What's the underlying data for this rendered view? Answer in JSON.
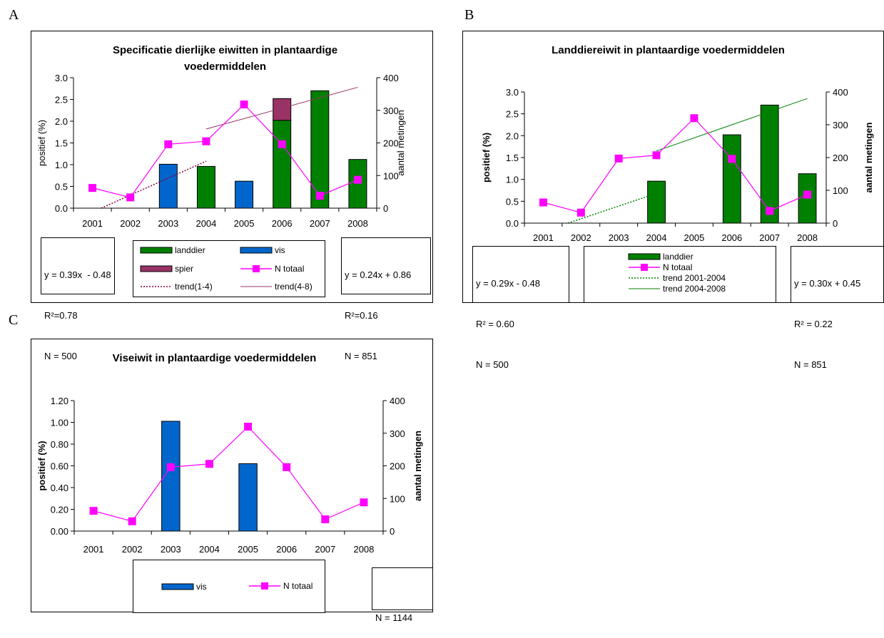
{
  "panels": {
    "A": {
      "letter": "A",
      "chart_data": {
        "type": "bar",
        "title": "Specificatie dierlijke eiwitten in plantaardige voedermiddelen",
        "title_lines": [
          "Specificatie dierlijke eiwitten in plantaardige",
          "voedermiddelen"
        ],
        "ylabel": "positief (%)",
        "y2label": "aantal metingen",
        "categories": [
          "2001",
          "2002",
          "2003",
          "2004",
          "2005",
          "2006",
          "2007",
          "2008"
        ],
        "ylim": [
          0,
          3.0
        ],
        "y2lim": [
          0,
          400
        ],
        "y_ticks": [
          "0.0",
          "0.5",
          "1.0",
          "1.5",
          "2.0",
          "2.5",
          "3.0"
        ],
        "y2_ticks": [
          "0",
          "100",
          "200",
          "300",
          "400"
        ],
        "series": [
          {
            "name": "landdier",
            "kind": "bar",
            "stack": "main",
            "color": "#008000",
            "values": [
              0,
              0,
              0,
              0.96,
              0,
              2.02,
              2.7,
              1.12
            ]
          },
          {
            "name": "vis",
            "kind": "bar",
            "stack": "main",
            "color": "#0066CC",
            "values": [
              0,
              0,
              1.01,
              0,
              0.62,
              0,
              0,
              0
            ]
          },
          {
            "name": "spier",
            "kind": "bar",
            "stack": "main",
            "color": "#993366",
            "values": [
              0,
              0,
              0,
              0,
              0,
              0.5,
              0,
              0
            ]
          },
          {
            "name": "N totaal",
            "kind": "line",
            "axis": "right",
            "color": "#FF00FF",
            "values": [
              62,
              33,
              196,
              205,
              318,
              196,
              38,
              87
            ]
          },
          {
            "name": "trend(1-4)",
            "kind": "trend",
            "style": "dotted",
            "color": "#800040",
            "from": 1,
            "to": 4,
            "slope": 0.39,
            "intercept": -0.48
          },
          {
            "name": "trend(4-8)",
            "kind": "trend",
            "style": "solid",
            "color": "#993366",
            "from": 4,
            "to": 8,
            "slope": 0.24,
            "intercept": 0.86
          }
        ]
      },
      "stats_left": [
        "y = 0.39x  - 0.48",
        "R²=0.78",
        "N = 500"
      ],
      "stats_right": [
        "y = 0.24x + 0.86",
        "R²=0.16",
        "N = 851"
      ]
    },
    "B": {
      "letter": "B",
      "chart_data": {
        "type": "bar",
        "title": "Landdiereiwit in plantaardige voedermiddelen",
        "ylabel": "positief (%)",
        "y2label": "aantal metingen",
        "categories": [
          "2001",
          "2002",
          "2003",
          "2004",
          "2005",
          "2006",
          "2007",
          "2008"
        ],
        "ylim": [
          0,
          3.0
        ],
        "y2lim": [
          0,
          400
        ],
        "y_ticks": [
          "0.0",
          "0.5",
          "1.0",
          "1.5",
          "2.0",
          "2.5",
          "3.0"
        ],
        "y2_ticks": [
          "0",
          "100",
          "200",
          "300",
          "400"
        ],
        "series": [
          {
            "name": "landdier",
            "kind": "bar",
            "color": "#008000",
            "values": [
              0,
              0,
              0,
              0.96,
              0,
              2.02,
              2.7,
              1.13
            ]
          },
          {
            "name": "N totaal",
            "kind": "line",
            "axis": "right",
            "color": "#FF00FF",
            "values": [
              63,
              32,
              197,
              207,
              320,
              196,
              37,
              87
            ]
          },
          {
            "name": "trend 2001-2004",
            "kind": "trend",
            "style": "dotted",
            "color": "#008000",
            "from": 1,
            "to": 4,
            "slope": 0.29,
            "intercept": -0.48
          },
          {
            "name": "trend 2004-2008",
            "kind": "trend",
            "style": "solid",
            "color": "#008000",
            "from": 4,
            "to": 8,
            "slope": 0.3,
            "intercept": 0.45
          }
        ]
      },
      "stats_left": [
        "y = 0.29x - 0.48",
        "R² = 0.60",
        "N = 500"
      ],
      "stats_right": [
        "y = 0.30x + 0.45",
        "R² = 0.22",
        "N = 851"
      ]
    },
    "C": {
      "letter": "C",
      "chart_data": {
        "type": "bar",
        "title": "Viseiwit in plantaardige voedermiddelen",
        "ylabel": "positief (%)",
        "y2label": "aantal metingen",
        "categories": [
          "2001",
          "2002",
          "2003",
          "2004",
          "2005",
          "2006",
          "2007",
          "2008"
        ],
        "ylim": [
          0,
          1.2
        ],
        "y2lim": [
          0,
          400
        ],
        "y_ticks": [
          "0.00",
          "0.20",
          "0.40",
          "0.60",
          "0.80",
          "1.00",
          "1.20"
        ],
        "y2_ticks": [
          "0",
          "100",
          "200",
          "300",
          "400"
        ],
        "series": [
          {
            "name": "vis",
            "kind": "bar",
            "color": "#0066CC",
            "values": [
              0,
              0,
              1.01,
              0,
              0.62,
              0,
              0,
              0
            ]
          },
          {
            "name": "N totaal",
            "kind": "line",
            "axis": "right",
            "color": "#FF00FF",
            "values": [
              62,
              30,
              196,
              206,
              320,
              196,
              36,
              88
            ]
          }
        ]
      },
      "stats_right": [
        "N = 1144"
      ]
    }
  }
}
